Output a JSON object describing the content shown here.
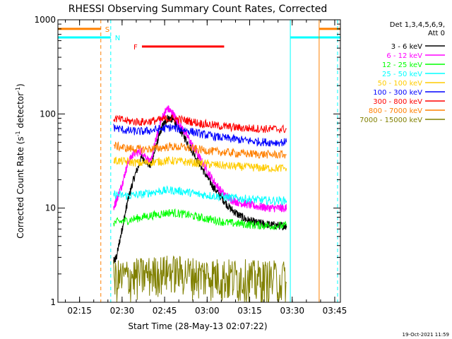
{
  "chart_data": {
    "type": "line",
    "title": "RHESSI Observing Summary Count Rates, Corrected",
    "xlabel": "Start Time (28-May-13 02:07:22)",
    "ylabel_main": "Corrected Count Rate (s",
    "ylabel_sup1": "-1",
    "ylabel_mid": " detector",
    "ylabel_sup2": "-1",
    "ylabel_end": ")",
    "yscale": "log",
    "ylim": [
      1,
      1000
    ],
    "xlim": [
      "02:07:22",
      "03:47:00"
    ],
    "x_ticks": [
      "02:15",
      "02:30",
      "02:45",
      "03:00",
      "03:15",
      "03:30",
      "03:45"
    ],
    "y_ticks": [
      "1",
      "10",
      "100",
      "1000"
    ],
    "legend_header": [
      "Det 1,3,4,5,6,9,",
      "Att 0"
    ],
    "legend_position": "top-right",
    "footer_date": "19-Oct-2021 11:59",
    "flags": [
      {
        "label": "S",
        "color": "#ff8000",
        "segments": [
          [
            "02:07:22",
            "02:22:30"
          ],
          [
            "03:39:30",
            "03:47:00"
          ]
        ],
        "level": 800
      },
      {
        "label": "N",
        "color": "#00ffff",
        "segments": [
          [
            "02:07:22",
            "02:26:00"
          ],
          [
            "03:29:20",
            "03:47:00"
          ]
        ],
        "level": 650
      },
      {
        "label": "F",
        "color": "#ff0000",
        "segments": [
          [
            "02:37:00",
            "03:06:00"
          ]
        ],
        "level": 520
      }
    ],
    "markers": [
      {
        "color": "#ff8000",
        "time": "02:22:30",
        "dashed": true
      },
      {
        "color": "#00ffff",
        "time": "02:26:00",
        "dashed": true
      },
      {
        "color": "#00ffff",
        "time": "03:29:20",
        "dashed": false
      },
      {
        "color": "#ff8000",
        "time": "03:39:30",
        "dashed": false
      },
      {
        "color": "#00ffff",
        "time": "03:46:00",
        "dashed": true
      }
    ],
    "series": [
      {
        "name": "3 - 6 keV",
        "color": "#000000",
        "t": [
          "02:27:00",
          "02:28:00",
          "02:30:00",
          "02:32:00",
          "02:34:00",
          "02:37:00",
          "02:40:00",
          "02:42:00",
          "02:44:00",
          "02:46:00",
          "02:48:00",
          "02:50:00",
          "02:53:00",
          "02:56:00",
          "02:59:00",
          "03:02:00",
          "03:05:00",
          "03:08:00",
          "03:11:00",
          "03:14:00",
          "03:17:00",
          "03:20:00",
          "03:23:00",
          "03:26:00",
          "03:28:00"
        ],
        "y": [
          2.7,
          3,
          6,
          12,
          20,
          35,
          28,
          45,
          72,
          90,
          88,
          72,
          50,
          35,
          24,
          17,
          13,
          10,
          8.5,
          7.5,
          7,
          6.8,
          6.6,
          6.5,
          6.5
        ]
      },
      {
        "name": "6 - 12 keV",
        "color": "#ff00ff",
        "t": [
          "02:27:00",
          "02:28:00",
          "02:30:00",
          "02:32:00",
          "02:34:00",
          "02:37:00",
          "02:40:00",
          "02:42:00",
          "02:44:00",
          "02:46:00",
          "02:48:00",
          "02:50:00",
          "02:53:00",
          "02:56:00",
          "02:59:00",
          "03:02:00",
          "03:05:00",
          "03:08:00",
          "03:11:00",
          "03:14:00",
          "03:17:00",
          "03:20:00",
          "03:23:00",
          "03:26:00",
          "03:28:00"
        ],
        "y": [
          10,
          12,
          18,
          30,
          38,
          40,
          30,
          55,
          90,
          115,
          100,
          80,
          58,
          40,
          28,
          20,
          15,
          12.5,
          11.5,
          11,
          10.5,
          10.2,
          10,
          10,
          10
        ]
      },
      {
        "name": "12 - 25 keV",
        "color": "#00ff00",
        "t": [
          "02:27:00",
          "02:32:00",
          "02:37:00",
          "02:42:00",
          "02:47:00",
          "02:52:00",
          "02:57:00",
          "03:02:00",
          "03:07:00",
          "03:12:00",
          "03:17:00",
          "03:22:00",
          "03:28:00"
        ],
        "y": [
          7,
          7.4,
          8,
          8.5,
          9,
          8.6,
          8,
          7.5,
          7,
          6.8,
          6.6,
          6.5,
          6.5
        ]
      },
      {
        "name": "25 - 50 keV",
        "color": "#00ffff",
        "t": [
          "02:27:00",
          "02:32:00",
          "02:37:00",
          "02:42:00",
          "02:47:00",
          "02:52:00",
          "02:57:00",
          "03:02:00",
          "03:07:00",
          "03:12:00",
          "03:17:00",
          "03:22:00",
          "03:28:00"
        ],
        "y": [
          14,
          13.5,
          14,
          15,
          15.5,
          15,
          14,
          13.5,
          13,
          12.6,
          12.3,
          12,
          12
        ]
      },
      {
        "name": "50 - 100 keV",
        "color": "#ffcc00",
        "t": [
          "02:27:00",
          "02:32:00",
          "02:37:00",
          "02:42:00",
          "02:47:00",
          "02:52:00",
          "02:57:00",
          "03:02:00",
          "03:07:00",
          "03:12:00",
          "03:17:00",
          "03:22:00",
          "03:28:00"
        ],
        "y": [
          32,
          31,
          30,
          31,
          32,
          31,
          30,
          29,
          28,
          27.5,
          27,
          26.5,
          26.5
        ]
      },
      {
        "name": "100 - 300 keV",
        "color": "#0000ff",
        "t": [
          "02:27:00",
          "02:32:00",
          "02:37:00",
          "02:42:00",
          "02:47:00",
          "02:52:00",
          "02:57:00",
          "03:02:00",
          "03:07:00",
          "03:12:00",
          "03:17:00",
          "03:22:00",
          "03:28:00"
        ],
        "y": [
          72,
          66,
          65,
          68,
          72,
          68,
          62,
          58,
          55,
          53,
          51,
          50,
          50
        ]
      },
      {
        "name": "300 - 800 keV",
        "color": "#ff0000",
        "t": [
          "02:27:00",
          "02:32:00",
          "02:37:00",
          "02:42:00",
          "02:47:00",
          "02:52:00",
          "02:57:00",
          "03:02:00",
          "03:07:00",
          "03:12:00",
          "03:17:00",
          "03:22:00",
          "03:28:00"
        ],
        "y": [
          90,
          84,
          82,
          85,
          90,
          86,
          80,
          76,
          73,
          71,
          70,
          69,
          69
        ]
      },
      {
        "name": "800 - 7000 keV",
        "color": "#ff8000",
        "t": [
          "02:27:00",
          "02:32:00",
          "02:37:00",
          "02:42:00",
          "02:47:00",
          "02:52:00",
          "02:57:00",
          "03:02:00",
          "03:07:00",
          "03:12:00",
          "03:17:00",
          "03:22:00",
          "03:28:00"
        ],
        "y": [
          46,
          43,
          42,
          43,
          45,
          44,
          42,
          40,
          39,
          38,
          37.5,
          37,
          37
        ]
      },
      {
        "name": "7000 - 15000 keV",
        "color": "#808000",
        "t": [
          "02:27:00",
          "02:32:00",
          "02:37:00",
          "02:42:00",
          "02:47:00",
          "02:52:00",
          "02:57:00",
          "03:02:00",
          "03:07:00",
          "03:12:00",
          "03:17:00",
          "03:22:00",
          "03:28:00"
        ],
        "y": [
          1.6,
          1.7,
          1.8,
          1.9,
          2.0,
          1.9,
          1.8,
          1.8,
          1.7,
          1.7,
          1.6,
          1.6,
          1.6
        ]
      }
    ]
  }
}
